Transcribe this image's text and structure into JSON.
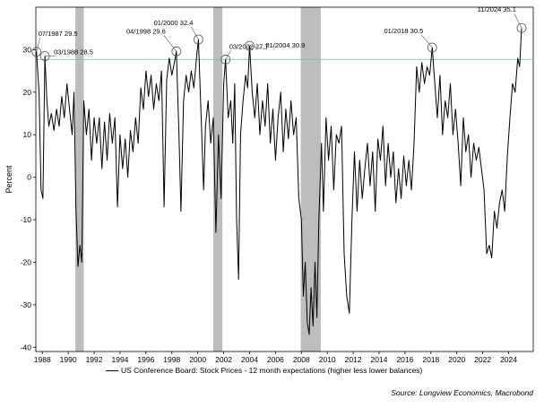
{
  "chart_data": {
    "type": "line",
    "title": "",
    "xlabel": "",
    "ylabel": "Percent",
    "xlim": [
      1987.5,
      2025.9
    ],
    "ylim": [
      -41,
      40
    ],
    "y_ticks": [
      -40,
      -30,
      -20,
      -10,
      0,
      10,
      20,
      30
    ],
    "x_ticks": [
      "1988",
      "1990",
      "1992",
      "1994",
      "1996",
      "1998",
      "2000",
      "2002",
      "2004",
      "2006",
      "2008",
      "2010",
      "2012",
      "2014",
      "2016",
      "2018",
      "2020",
      "2022",
      "2024"
    ],
    "reference_line": 27.7,
    "recessions": [
      [
        1990.55,
        1991.2
      ],
      [
        2001.2,
        2001.9
      ],
      [
        2007.95,
        2009.5
      ]
    ],
    "series": [
      {
        "name": "US Conference Board: Stock Prices - 12 month expectations (higher less lower balances)",
        "color": "#000000",
        "points": [
          [
            1987.55,
            29.5
          ],
          [
            1987.75,
            20
          ],
          [
            1987.9,
            -3
          ],
          [
            1988.05,
            -5
          ],
          [
            1988.2,
            28.5
          ],
          [
            1988.35,
            18
          ],
          [
            1988.5,
            12
          ],
          [
            1988.7,
            15
          ],
          [
            1988.9,
            11
          ],
          [
            1989.1,
            16
          ],
          [
            1989.3,
            12
          ],
          [
            1989.5,
            19
          ],
          [
            1989.7,
            14
          ],
          [
            1989.9,
            22
          ],
          [
            1990.1,
            16
          ],
          [
            1990.3,
            10
          ],
          [
            1990.45,
            20
          ],
          [
            1990.6,
            -8
          ],
          [
            1990.75,
            -21
          ],
          [
            1990.9,
            -16
          ],
          [
            1991.05,
            -20
          ],
          [
            1991.2,
            18
          ],
          [
            1991.4,
            10
          ],
          [
            1991.6,
            16
          ],
          [
            1991.8,
            4
          ],
          [
            1992,
            14
          ],
          [
            1992.2,
            8
          ],
          [
            1992.4,
            14
          ],
          [
            1992.6,
            2
          ],
          [
            1992.8,
            13
          ],
          [
            1993,
            4
          ],
          [
            1993.2,
            15
          ],
          [
            1993.4,
            8
          ],
          [
            1993.6,
            14
          ],
          [
            1993.8,
            -7
          ],
          [
            1994,
            10
          ],
          [
            1994.2,
            2
          ],
          [
            1994.4,
            9
          ],
          [
            1994.6,
            0
          ],
          [
            1994.8,
            11
          ],
          [
            1995,
            6
          ],
          [
            1995.2,
            14
          ],
          [
            1995.4,
            8
          ],
          [
            1995.6,
            21
          ],
          [
            1995.8,
            16
          ],
          [
            1996,
            25
          ],
          [
            1996.2,
            19
          ],
          [
            1996.4,
            24
          ],
          [
            1996.6,
            16
          ],
          [
            1996.8,
            22
          ],
          [
            1997,
            18
          ],
          [
            1997.2,
            25
          ],
          [
            1997.4,
            -7
          ],
          [
            1997.6,
            23
          ],
          [
            1997.8,
            28
          ],
          [
            1998,
            24
          ],
          [
            1998.2,
            27
          ],
          [
            1998.35,
            29.6
          ],
          [
            1998.55,
            10
          ],
          [
            1998.7,
            -8
          ],
          [
            1998.9,
            18
          ],
          [
            1999.1,
            24
          ],
          [
            1999.3,
            20
          ],
          [
            1999.5,
            25
          ],
          [
            1999.7,
            21
          ],
          [
            1999.9,
            28
          ],
          [
            2000.05,
            32.4
          ],
          [
            2000.25,
            15
          ],
          [
            2000.45,
            -3
          ],
          [
            2000.6,
            12
          ],
          [
            2000.8,
            18
          ],
          [
            2001,
            8
          ],
          [
            2001.2,
            14
          ],
          [
            2001.4,
            -13
          ],
          [
            2001.6,
            10
          ],
          [
            2001.8,
            -5
          ],
          [
            2002,
            22
          ],
          [
            2002.15,
            27.7
          ],
          [
            2002.35,
            14
          ],
          [
            2002.55,
            18
          ],
          [
            2002.7,
            8
          ],
          [
            2002.85,
            22
          ],
          [
            2003,
            -10
          ],
          [
            2003.15,
            -24
          ],
          [
            2003.3,
            10
          ],
          [
            2003.5,
            18
          ],
          [
            2003.7,
            24
          ],
          [
            2003.85,
            21
          ],
          [
            2004,
            30.9
          ],
          [
            2004.2,
            20
          ],
          [
            2004.4,
            14
          ],
          [
            2004.6,
            22
          ],
          [
            2004.8,
            10
          ],
          [
            2005,
            18
          ],
          [
            2005.2,
            12
          ],
          [
            2005.4,
            22
          ],
          [
            2005.6,
            8
          ],
          [
            2005.8,
            16
          ],
          [
            2006,
            4
          ],
          [
            2006.2,
            14
          ],
          [
            2006.4,
            20
          ],
          [
            2006.6,
            6
          ],
          [
            2006.8,
            16
          ],
          [
            2007,
            9
          ],
          [
            2007.2,
            18
          ],
          [
            2007.4,
            10
          ],
          [
            2007.6,
            14
          ],
          [
            2007.8,
            -5
          ],
          [
            2008,
            -10
          ],
          [
            2008.15,
            -28
          ],
          [
            2008.3,
            -20
          ],
          [
            2008.45,
            -34
          ],
          [
            2008.6,
            -37
          ],
          [
            2008.75,
            -26
          ],
          [
            2008.9,
            -35
          ],
          [
            2009.05,
            -20
          ],
          [
            2009.2,
            -33
          ],
          [
            2009.35,
            -10
          ],
          [
            2009.55,
            8
          ],
          [
            2009.7,
            -8
          ],
          [
            2009.9,
            14
          ],
          [
            2010.1,
            4
          ],
          [
            2010.3,
            12
          ],
          [
            2010.5,
            -3
          ],
          [
            2010.7,
            10
          ],
          [
            2010.9,
            8
          ],
          [
            2011.1,
            12
          ],
          [
            2011.3,
            -18
          ],
          [
            2011.5,
            -28
          ],
          [
            2011.7,
            -32
          ],
          [
            2011.9,
            -10
          ],
          [
            2012.1,
            6
          ],
          [
            2012.3,
            -8
          ],
          [
            2012.5,
            4
          ],
          [
            2012.7,
            -5
          ],
          [
            2012.9,
            2
          ],
          [
            2013.1,
            8
          ],
          [
            2013.3,
            -2
          ],
          [
            2013.5,
            6
          ],
          [
            2013.7,
            -8
          ],
          [
            2013.9,
            9
          ],
          [
            2014.1,
            4
          ],
          [
            2014.3,
            12
          ],
          [
            2014.5,
            -2
          ],
          [
            2014.7,
            8
          ],
          [
            2014.9,
            0
          ],
          [
            2015.1,
            6
          ],
          [
            2015.3,
            -6
          ],
          [
            2015.5,
            2
          ],
          [
            2015.7,
            -5
          ],
          [
            2015.9,
            5
          ],
          [
            2016.1,
            -2
          ],
          [
            2016.3,
            4
          ],
          [
            2016.5,
            -3
          ],
          [
            2016.7,
            8
          ],
          [
            2016.9,
            26
          ],
          [
            2017.1,
            20
          ],
          [
            2017.3,
            27
          ],
          [
            2017.5,
            22
          ],
          [
            2017.7,
            26
          ],
          [
            2017.9,
            24
          ],
          [
            2018.1,
            30.5
          ],
          [
            2018.3,
            22
          ],
          [
            2018.5,
            14
          ],
          [
            2018.7,
            24
          ],
          [
            2018.9,
            10
          ],
          [
            2019.1,
            18
          ],
          [
            2019.3,
            14
          ],
          [
            2019.5,
            22
          ],
          [
            2019.7,
            10
          ],
          [
            2019.9,
            16
          ],
          [
            2020.1,
            8
          ],
          [
            2020.3,
            -2
          ],
          [
            2020.5,
            14
          ],
          [
            2020.7,
            6
          ],
          [
            2020.9,
            10
          ],
          [
            2021.1,
            0
          ],
          [
            2021.3,
            8
          ],
          [
            2021.5,
            4
          ],
          [
            2021.7,
            7
          ],
          [
            2021.9,
            2
          ],
          [
            2022.1,
            -3
          ],
          [
            2022.3,
            -18
          ],
          [
            2022.5,
            -16
          ],
          [
            2022.7,
            -19
          ],
          [
            2022.9,
            -8
          ],
          [
            2023.1,
            -12
          ],
          [
            2023.3,
            -6
          ],
          [
            2023.5,
            -3
          ],
          [
            2023.7,
            -8
          ],
          [
            2023.9,
            5
          ],
          [
            2024.1,
            14
          ],
          [
            2024.3,
            22
          ],
          [
            2024.5,
            20
          ],
          [
            2024.7,
            28
          ],
          [
            2024.85,
            26
          ],
          [
            2025.0,
            35.1
          ]
        ]
      }
    ],
    "annotations": [
      {
        "label": "07/1987 29.5",
        "x": 1987.55,
        "y": 29.5
      },
      {
        "label": "03/1988 28.5",
        "x": 1988.2,
        "y": 28.5
      },
      {
        "label": "04/1998 29.6",
        "x": 1998.35,
        "y": 29.6
      },
      {
        "label": "01/2000 32.4",
        "x": 2000.05,
        "y": 32.4
      },
      {
        "label": "03/2002 27.7",
        "x": 2002.15,
        "y": 27.7
      },
      {
        "label": "01/2004 30.9",
        "x": 2004.0,
        "y": 30.9
      },
      {
        "label": "01/2018 30.5",
        "x": 2018.1,
        "y": 30.5
      },
      {
        "label": "11/2024 35.1",
        "x": 2025.0,
        "y": 35.1
      }
    ]
  },
  "legend": {
    "label": "US Conference Board: Stock Prices - 12 month expectations (higher less lower balances)"
  },
  "source": "Source: Longview Economics, Macrobond"
}
